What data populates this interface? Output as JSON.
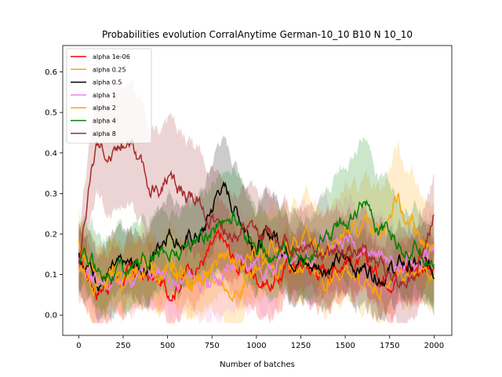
{
  "chart_data": {
    "type": "line",
    "title": "Probabilities evolution CorralAnytime German-10_10 B10 N 10_10",
    "xlabel": "Number of batches",
    "ylabel": "",
    "xlim": [
      -90,
      2100
    ],
    "ylim": [
      -0.05,
      0.665
    ],
    "xticks": [
      0,
      250,
      500,
      750,
      1000,
      1250,
      1500,
      1750,
      2000
    ],
    "xtick_labels": [
      "0",
      "250",
      "500",
      "750",
      "1000",
      "1250",
      "1500",
      "1750",
      "2000"
    ],
    "yticks": [
      0.0,
      0.1,
      0.2,
      0.3,
      0.4,
      0.5,
      0.6
    ],
    "ytick_labels": [
      "0.0",
      "0.1",
      "0.2",
      "0.3",
      "0.4",
      "0.5",
      "0.6"
    ],
    "legend_position": "top-left",
    "grid": false,
    "series": [
      {
        "name": "alpha 1e-06",
        "color": "#ff0000",
        "x": [
          0,
          100,
          200,
          300,
          400,
          500,
          600,
          700,
          800,
          900,
          1000,
          1100,
          1200,
          1300,
          1400,
          1500,
          1600,
          1700,
          1800,
          1900,
          2000
        ],
        "y": [
          0.13,
          0.07,
          0.09,
          0.1,
          0.09,
          0.06,
          0.11,
          0.14,
          0.18,
          0.12,
          0.1,
          0.08,
          0.13,
          0.12,
          0.11,
          0.15,
          0.12,
          0.1,
          0.12,
          0.13,
          0.09
        ],
        "band": [
          0.08,
          0.09,
          0.08,
          0.08,
          0.08,
          0.07,
          0.08,
          0.08,
          0.09,
          0.09,
          0.08,
          0.08,
          0.08,
          0.09,
          0.08,
          0.08,
          0.08,
          0.08,
          0.08,
          0.08,
          0.08
        ]
      },
      {
        "name": "alpha 0.25",
        "color": "#ffa500",
        "x": [
          0,
          100,
          200,
          300,
          400,
          500,
          600,
          700,
          800,
          900,
          1000,
          1100,
          1200,
          1300,
          1400,
          1500,
          1600,
          1700,
          1800,
          1900,
          2000
        ],
        "y": [
          0.18,
          0.1,
          0.12,
          0.1,
          0.12,
          0.11,
          0.1,
          0.09,
          0.1,
          0.08,
          0.1,
          0.12,
          0.11,
          0.1,
          0.09,
          0.08,
          0.07,
          0.06,
          0.08,
          0.1,
          0.12
        ],
        "band": [
          0.08,
          0.08,
          0.08,
          0.08,
          0.08,
          0.07,
          0.07,
          0.08,
          0.08,
          0.08,
          0.08,
          0.08,
          0.08,
          0.08,
          0.07,
          0.07,
          0.07,
          0.07,
          0.07,
          0.08,
          0.08
        ]
      },
      {
        "name": "alpha 0.5",
        "color": "#000000",
        "x": [
          0,
          100,
          200,
          300,
          400,
          500,
          600,
          700,
          800,
          900,
          1000,
          1100,
          1200,
          1300,
          1400,
          1500,
          1600,
          1700,
          1800,
          1900,
          2000
        ],
        "y": [
          0.15,
          0.1,
          0.1,
          0.11,
          0.13,
          0.22,
          0.18,
          0.2,
          0.32,
          0.25,
          0.18,
          0.2,
          0.16,
          0.12,
          0.13,
          0.13,
          0.12,
          0.11,
          0.12,
          0.12,
          0.1
        ],
        "band": [
          0.08,
          0.08,
          0.08,
          0.08,
          0.09,
          0.1,
          0.1,
          0.1,
          0.12,
          0.11,
          0.1,
          0.1,
          0.09,
          0.09,
          0.09,
          0.09,
          0.09,
          0.09,
          0.09,
          0.09,
          0.09
        ]
      },
      {
        "name": "alpha 1",
        "color": "#ee82ee",
        "x": [
          0,
          100,
          200,
          300,
          400,
          500,
          600,
          700,
          800,
          900,
          1000,
          1100,
          1200,
          1300,
          1400,
          1500,
          1600,
          1700,
          1800,
          1900,
          2000
        ],
        "y": [
          0.12,
          0.08,
          0.07,
          0.08,
          0.09,
          0.1,
          0.08,
          0.09,
          0.1,
          0.12,
          0.13,
          0.12,
          0.15,
          0.16,
          0.18,
          0.19,
          0.17,
          0.14,
          0.12,
          0.12,
          0.15
        ],
        "band": [
          0.08,
          0.08,
          0.08,
          0.08,
          0.08,
          0.08,
          0.08,
          0.09,
          0.1,
          0.12,
          0.1,
          0.1,
          0.1,
          0.11,
          0.1,
          0.1,
          0.1,
          0.1,
          0.09,
          0.09,
          0.09
        ]
      },
      {
        "name": "alpha 2",
        "color": "#ffa500",
        "x": [
          0,
          100,
          200,
          300,
          400,
          500,
          600,
          700,
          800,
          900,
          1000,
          1100,
          1200,
          1300,
          1400,
          1500,
          1600,
          1700,
          1800,
          1900,
          2000
        ],
        "y": [
          0.12,
          0.09,
          0.08,
          0.09,
          0.1,
          0.11,
          0.12,
          0.11,
          0.13,
          0.13,
          0.14,
          0.15,
          0.17,
          0.18,
          0.17,
          0.2,
          0.2,
          0.22,
          0.29,
          0.2,
          0.15
        ],
        "band": [
          0.08,
          0.08,
          0.08,
          0.08,
          0.08,
          0.09,
          0.09,
          0.09,
          0.09,
          0.1,
          0.1,
          0.1,
          0.1,
          0.1,
          0.1,
          0.11,
          0.11,
          0.11,
          0.13,
          0.12,
          0.1
        ]
      },
      {
        "name": "alpha 4",
        "color": "#008000",
        "x": [
          0,
          100,
          200,
          300,
          400,
          500,
          600,
          700,
          800,
          900,
          1000,
          1100,
          1200,
          1300,
          1400,
          1500,
          1600,
          1700,
          1800,
          1900,
          2000
        ],
        "y": [
          0.14,
          0.11,
          0.12,
          0.12,
          0.14,
          0.15,
          0.17,
          0.2,
          0.23,
          0.24,
          0.16,
          0.15,
          0.14,
          0.16,
          0.18,
          0.24,
          0.27,
          0.22,
          0.18,
          0.17,
          0.15
        ],
        "band": [
          0.08,
          0.09,
          0.1,
          0.1,
          0.1,
          0.1,
          0.1,
          0.11,
          0.12,
          0.12,
          0.1,
          0.1,
          0.1,
          0.1,
          0.11,
          0.14,
          0.16,
          0.13,
          0.11,
          0.1,
          0.1
        ]
      },
      {
        "name": "alpha 8",
        "color": "#a52a2a",
        "x": [
          0,
          100,
          200,
          300,
          400,
          500,
          600,
          700,
          800,
          900,
          1000,
          1100,
          1200,
          1300,
          1400,
          1500,
          1600,
          1700,
          1800,
          1900,
          2000
        ],
        "y": [
          0.14,
          0.43,
          0.41,
          0.45,
          0.3,
          0.33,
          0.3,
          0.26,
          0.22,
          0.2,
          0.19,
          0.2,
          0.17,
          0.18,
          0.15,
          0.16,
          0.16,
          0.12,
          0.1,
          0.1,
          0.25
        ],
        "band": [
          0.08,
          0.12,
          0.15,
          0.15,
          0.15,
          0.15,
          0.14,
          0.13,
          0.12,
          0.1,
          0.1,
          0.1,
          0.1,
          0.1,
          0.1,
          0.1,
          0.1,
          0.1,
          0.1,
          0.1,
          0.1
        ]
      }
    ]
  }
}
